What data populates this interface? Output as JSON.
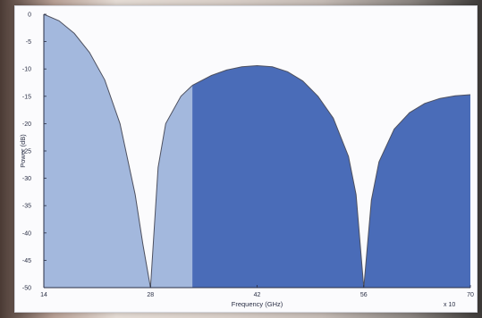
{
  "chart_data": {
    "type": "area",
    "title": "",
    "xlabel": "Frequency (GHz)",
    "ylabel": "Power (dB)",
    "x_exponent_label": "x 10",
    "xlim": [
      14,
      70
    ],
    "ylim": [
      -50,
      0
    ],
    "xticks": [
      14,
      28,
      42,
      56,
      70
    ],
    "yticks": [
      0,
      -5,
      -10,
      -15,
      -20,
      -25,
      -30,
      -35,
      -40,
      -45,
      -50
    ],
    "grid": false,
    "legend": "none",
    "series": [
      {
        "shade": "light",
        "color": "#a3b8dd",
        "x": [
          14,
          16,
          18,
          20,
          22,
          24,
          26,
          27,
          28,
          29,
          30,
          32,
          33.5
        ],
        "y": [
          0,
          -1.2,
          -3.5,
          -7,
          -12,
          -20,
          -33,
          -42,
          -50,
          -28,
          -20,
          -15,
          -13
        ]
      },
      {
        "shade": "dark",
        "color": "#4a6cb8",
        "x": [
          33.5,
          36,
          38,
          40,
          42,
          44,
          46,
          48,
          50,
          52,
          54,
          55,
          56,
          57,
          58,
          60,
          62,
          64,
          66,
          68,
          70
        ],
        "y": [
          -13,
          -11.2,
          -10.2,
          -9.6,
          -9.4,
          -9.6,
          -10.5,
          -12.2,
          -15,
          -19,
          -26,
          -33,
          -50,
          -34,
          -27,
          -21,
          -18,
          -16.3,
          -15.4,
          -14.9,
          -14.7
        ]
      }
    ]
  },
  "colors": {
    "line": "#4e5160",
    "axis": "#2a2f45"
  }
}
